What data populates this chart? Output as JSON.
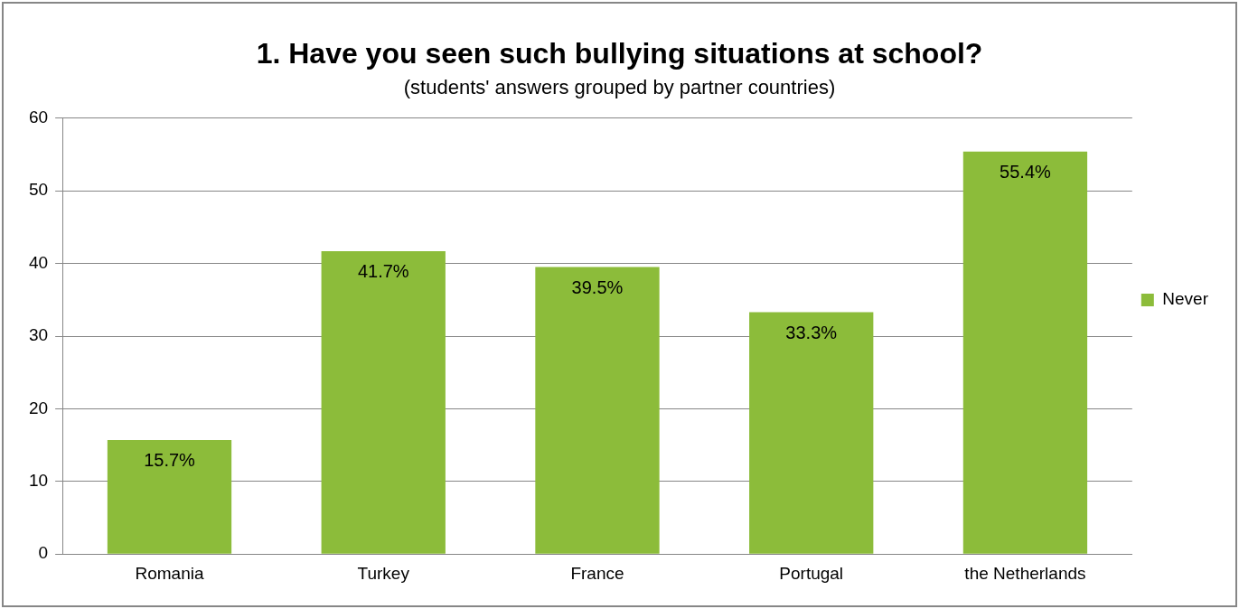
{
  "chart_data": {
    "type": "bar",
    "title": "1. Have you seen such bullying situations at school?",
    "subtitle": "(students' answers grouped by partner countries)",
    "categories": [
      "Romania",
      "Turkey",
      "France",
      "Portugal",
      "the Netherlands"
    ],
    "series": [
      {
        "name": "Never",
        "color": "#8cbc3a",
        "values": [
          15.7,
          41.7,
          39.5,
          33.3,
          55.4
        ],
        "value_labels": [
          "15.7%",
          "41.7%",
          "39.5%",
          "33.3%",
          "55.4%"
        ]
      }
    ],
    "ylim": [
      0,
      60
    ],
    "yticks": [
      0,
      10,
      20,
      30,
      40,
      50,
      60
    ],
    "grid": "y",
    "legend": "right"
  }
}
